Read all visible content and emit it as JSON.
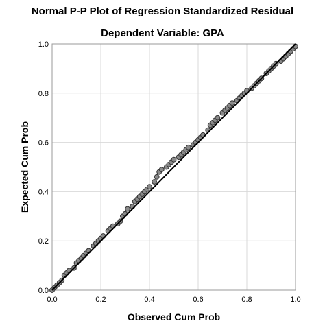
{
  "chart_data": {
    "type": "scatter",
    "title": "Normal P-P Plot of Regression Standardized Residual",
    "subtitle": "Dependent Variable: GPA",
    "xlabel": "Observed Cum Prob",
    "ylabel": "Expected Cum Prob",
    "xlim": [
      0.0,
      1.0
    ],
    "ylim": [
      0.0,
      1.0
    ],
    "xticks": [
      "0.0",
      "0.2",
      "0.4",
      "0.6",
      "0.8",
      "1.0"
    ],
    "yticks": [
      "0.0",
      "0.2",
      "0.4",
      "0.6",
      "0.8",
      "1.0"
    ],
    "grid": true,
    "reference_line": {
      "x": [
        0.0,
        1.0
      ],
      "y": [
        0.0,
        1.0
      ]
    },
    "points": {
      "x": [
        0.0,
        0.01,
        0.02,
        0.03,
        0.04,
        0.05,
        0.06,
        0.07,
        0.09,
        0.1,
        0.11,
        0.12,
        0.13,
        0.14,
        0.15,
        0.17,
        0.18,
        0.19,
        0.2,
        0.21,
        0.23,
        0.24,
        0.25,
        0.27,
        0.28,
        0.29,
        0.3,
        0.31,
        0.33,
        0.34,
        0.35,
        0.36,
        0.37,
        0.38,
        0.39,
        0.4,
        0.42,
        0.43,
        0.44,
        0.45,
        0.47,
        0.48,
        0.49,
        0.5,
        0.52,
        0.53,
        0.54,
        0.55,
        0.56,
        0.58,
        0.59,
        0.6,
        0.61,
        0.62,
        0.64,
        0.65,
        0.66,
        0.67,
        0.68,
        0.7,
        0.71,
        0.72,
        0.73,
        0.74,
        0.76,
        0.77,
        0.78,
        0.79,
        0.8,
        0.82,
        0.83,
        0.84,
        0.85,
        0.86,
        0.88,
        0.89,
        0.9,
        0.91,
        0.92,
        0.94,
        0.95,
        0.96,
        0.97,
        0.98,
        0.99,
        1.0
      ],
      "y": [
        0.0,
        0.01,
        0.02,
        0.03,
        0.04,
        0.06,
        0.07,
        0.08,
        0.09,
        0.11,
        0.12,
        0.13,
        0.14,
        0.15,
        0.16,
        0.18,
        0.19,
        0.2,
        0.21,
        0.22,
        0.24,
        0.25,
        0.26,
        0.27,
        0.28,
        0.3,
        0.31,
        0.33,
        0.34,
        0.36,
        0.37,
        0.38,
        0.39,
        0.4,
        0.41,
        0.42,
        0.44,
        0.46,
        0.48,
        0.49,
        0.5,
        0.51,
        0.52,
        0.53,
        0.54,
        0.55,
        0.56,
        0.57,
        0.58,
        0.59,
        0.6,
        0.61,
        0.62,
        0.63,
        0.65,
        0.67,
        0.68,
        0.69,
        0.7,
        0.72,
        0.73,
        0.74,
        0.75,
        0.76,
        0.77,
        0.78,
        0.79,
        0.8,
        0.81,
        0.82,
        0.83,
        0.84,
        0.85,
        0.86,
        0.88,
        0.89,
        0.9,
        0.91,
        0.92,
        0.93,
        0.94,
        0.95,
        0.96,
        0.97,
        0.98,
        0.99
      ]
    },
    "colors": {
      "point_fill": "#8a8a8a",
      "point_stroke": "#3a3a3a",
      "line": "#000000",
      "grid": "#d9d9d9"
    }
  }
}
